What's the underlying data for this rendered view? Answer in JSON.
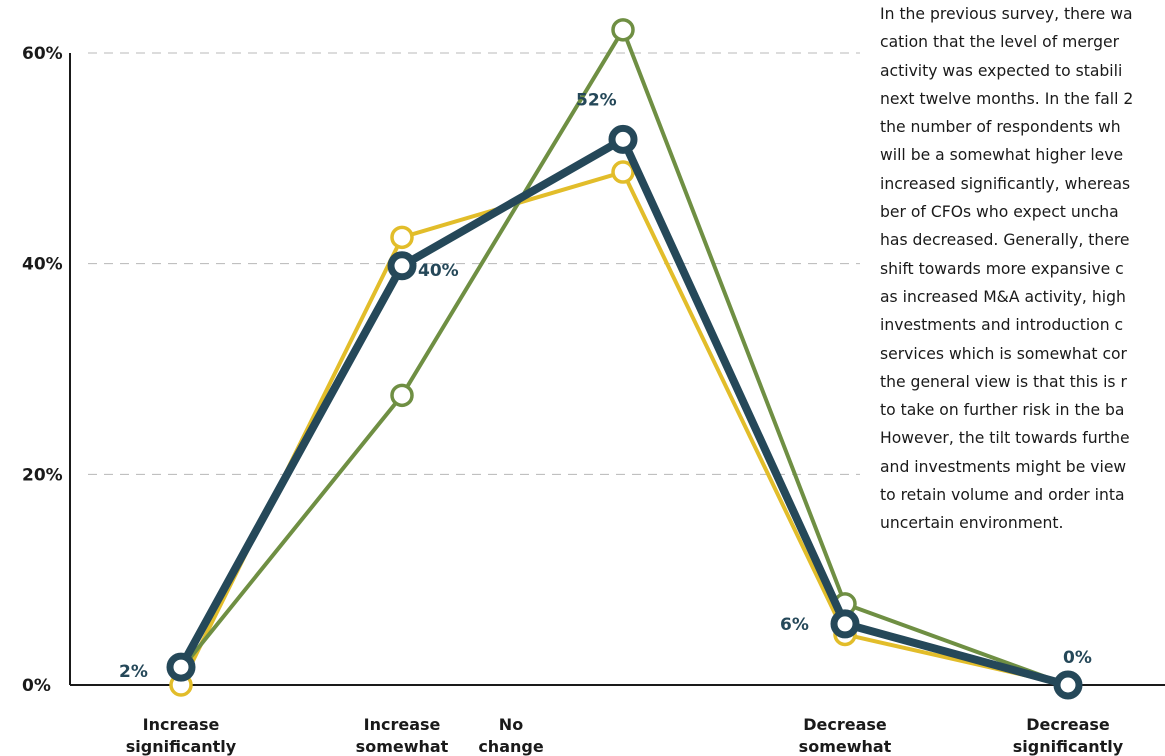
{
  "text_lines": [
    "In the previous survey, there wa",
    "cation that the level of merger",
    "activity was expected to stabili",
    "next twelve months. In the fall 2",
    "the number of respondents wh",
    "will be a somewhat higher leve",
    "increased significantly, whereas",
    "ber of CFOs who expect uncha",
    "has decreased. Generally, there",
    "shift towards more expansive c",
    "as increased M&A activity, high",
    "investments and introduction c",
    "services which is somewhat cor",
    "the general view is that this is r",
    "to take on further risk in the ba",
    "However, the tilt towards furthe",
    "and investments might be view",
    "to retain volume and order inta",
    "uncertain environment."
  ],
  "chart_data": {
    "type": "line",
    "categories": [
      [
        "Increase",
        "significantly"
      ],
      [
        "Increase",
        "somewhat"
      ],
      [
        "No",
        "change"
      ],
      [
        "",
        ""
      ],
      [
        "Decrease",
        "somewhat"
      ],
      [
        "Decrease",
        "significantly"
      ]
    ],
    "ylim": [
      0,
      60
    ],
    "yticks": [
      {
        "value": 0,
        "label": "0%"
      },
      {
        "value": 20,
        "label": "20%"
      },
      {
        "value": 40,
        "label": "40%"
      },
      {
        "value": 60,
        "label": "60%"
      }
    ],
    "grid": "horizontal dashed",
    "series": [
      {
        "color": "#e2bd2a",
        "emphasis": false,
        "values": [
          0,
          42.5,
          null,
          48.7,
          4.8,
          0
        ]
      },
      {
        "color": "#6f8f43",
        "emphasis": false,
        "values": [
          1.5,
          27.5,
          null,
          62.2,
          7.7,
          0
        ]
      },
      {
        "color": "#254859",
        "emphasis": true,
        "values": [
          1.7,
          39.8,
          null,
          51.8,
          5.8,
          0
        ]
      }
    ],
    "data_labels": [
      {
        "category_index": 0,
        "text": "2%"
      },
      {
        "category_index": 1,
        "text": "40%"
      },
      {
        "category_index": 3,
        "text": "52%"
      },
      {
        "category_index": 4,
        "text": "6%"
      },
      {
        "category_index": 5,
        "text": "0%"
      }
    ],
    "colors": {
      "axis": "#1a1a1a",
      "grid": "#b8b8b8",
      "label": "#254859"
    }
  }
}
